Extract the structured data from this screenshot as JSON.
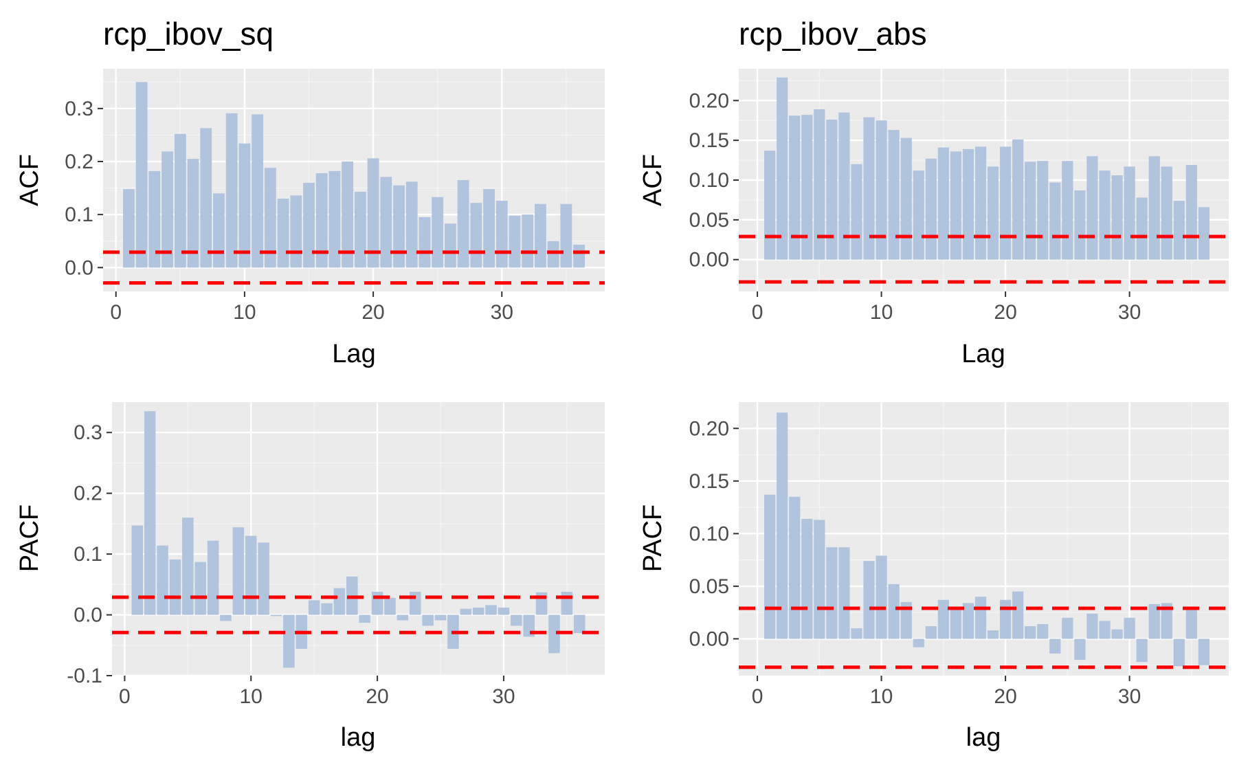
{
  "colors": {
    "panel_background": "#ebebeb",
    "grid_major": "#ffffff",
    "grid_minor": "#f5f5f5",
    "bar_fill": "#b0c4de",
    "conf_line": "#ff0000",
    "tick_text": "#4d4d4d"
  },
  "chart_data": [
    {
      "type": "bar",
      "title": "rcp_ibov_sq",
      "xlabel": "Lag",
      "ylabel": "ACF",
      "x": [
        1,
        2,
        3,
        4,
        5,
        6,
        7,
        8,
        9,
        10,
        11,
        12,
        13,
        14,
        15,
        16,
        17,
        18,
        19,
        20,
        21,
        22,
        23,
        24,
        25,
        26,
        27,
        28,
        29,
        30,
        31,
        32,
        33,
        34,
        35,
        36
      ],
      "values": [
        0.148,
        0.35,
        0.182,
        0.219,
        0.252,
        0.205,
        0.263,
        0.14,
        0.291,
        0.234,
        0.289,
        0.188,
        0.13,
        0.136,
        0.16,
        0.178,
        0.182,
        0.2,
        0.143,
        0.206,
        0.171,
        0.155,
        0.162,
        0.095,
        0.133,
        0.083,
        0.165,
        0.122,
        0.148,
        0.126,
        0.098,
        0.1,
        0.12,
        0.05,
        0.12,
        0.043
      ],
      "conf": [
        0.029,
        -0.029
      ],
      "xlim": [
        -1,
        38
      ],
      "ylim": [
        -0.045,
        0.375
      ],
      "xticks": [
        0,
        10,
        20,
        30
      ],
      "xtick_labels": [
        "0",
        "10",
        "20",
        "30"
      ],
      "yticks": [
        0,
        0.1,
        0.2,
        0.3
      ],
      "ytick_labels": [
        "0.0",
        "0.1",
        "0.2",
        "0.3"
      ],
      "grid": true
    },
    {
      "type": "bar",
      "title": "rcp_ibov_abs",
      "xlabel": "Lag",
      "ylabel": "ACF",
      "x": [
        1,
        2,
        3,
        4,
        5,
        6,
        7,
        8,
        9,
        10,
        11,
        12,
        13,
        14,
        15,
        16,
        17,
        18,
        19,
        20,
        21,
        22,
        23,
        24,
        25,
        26,
        27,
        28,
        29,
        30,
        31,
        32,
        33,
        34,
        35,
        36
      ],
      "values": [
        0.137,
        0.229,
        0.181,
        0.182,
        0.189,
        0.176,
        0.185,
        0.12,
        0.179,
        0.175,
        0.163,
        0.153,
        0.112,
        0.127,
        0.141,
        0.136,
        0.139,
        0.142,
        0.117,
        0.142,
        0.151,
        0.123,
        0.124,
        0.097,
        0.124,
        0.087,
        0.13,
        0.112,
        0.106,
        0.117,
        0.078,
        0.13,
        0.117,
        0.074,
        0.119,
        0.066
      ],
      "conf": [
        0.029,
        -0.028
      ],
      "xlim": [
        -1.5,
        38
      ],
      "ylim": [
        -0.04,
        0.24
      ],
      "xticks": [
        0,
        10,
        20,
        30
      ],
      "xtick_labels": [
        "0",
        "10",
        "20",
        "30"
      ],
      "yticks": [
        0,
        0.05,
        0.1,
        0.15,
        0.2
      ],
      "ytick_labels": [
        "0.00",
        "0.05",
        "0.10",
        "0.15",
        "0.20"
      ],
      "grid": true
    },
    {
      "type": "bar",
      "title": "",
      "xlabel": "lag",
      "ylabel": "PACF",
      "x": [
        1,
        2,
        3,
        4,
        5,
        6,
        7,
        8,
        9,
        10,
        11,
        12,
        13,
        14,
        15,
        16,
        17,
        18,
        19,
        20,
        21,
        22,
        23,
        24,
        25,
        26,
        27,
        28,
        29,
        30,
        31,
        32,
        33,
        34,
        35,
        36
      ],
      "values": [
        0.147,
        0.335,
        0.114,
        0.091,
        0.16,
        0.087,
        0.122,
        -0.01,
        0.144,
        0.13,
        0.119,
        -0.002,
        -0.087,
        -0.056,
        0.024,
        0.019,
        0.044,
        0.063,
        -0.013,
        0.038,
        0.028,
        -0.009,
        0.038,
        -0.018,
        -0.009,
        -0.056,
        0.01,
        0.012,
        0.016,
        0.012,
        -0.018,
        -0.036,
        0.037,
        -0.063,
        0.038,
        -0.03
      ],
      "conf": [
        0.029,
        -0.029
      ],
      "xlim": [
        -1,
        38
      ],
      "ylim": [
        -0.1,
        0.35
      ],
      "xticks": [
        0,
        10,
        20,
        30
      ],
      "xtick_labels": [
        "0",
        "10",
        "20",
        "30"
      ],
      "yticks": [
        -0.1,
        0,
        0.1,
        0.2,
        0.3
      ],
      "ytick_labels": [
        "-0.1",
        "0.0",
        "0.1",
        "0.2",
        "0.3"
      ],
      "grid": true
    },
    {
      "type": "bar",
      "title": "",
      "xlabel": "lag",
      "ylabel": "PACF",
      "x": [
        1,
        2,
        3,
        4,
        5,
        6,
        7,
        8,
        9,
        10,
        11,
        12,
        13,
        14,
        15,
        16,
        17,
        18,
        19,
        20,
        21,
        22,
        23,
        24,
        25,
        26,
        27,
        28,
        29,
        30,
        31,
        32,
        33,
        34,
        35,
        36
      ],
      "values": [
        0.137,
        0.215,
        0.135,
        0.114,
        0.113,
        0.087,
        0.087,
        0.01,
        0.074,
        0.079,
        0.052,
        0.035,
        -0.008,
        0.012,
        0.037,
        0.029,
        0.034,
        0.04,
        0.008,
        0.037,
        0.045,
        0.012,
        0.014,
        -0.014,
        0.02,
        -0.02,
        0.024,
        0.017,
        0.009,
        0.02,
        -0.022,
        0.033,
        0.034,
        -0.026,
        0.029,
        -0.025
      ],
      "conf": [
        0.029,
        -0.027
      ],
      "xlim": [
        -1.5,
        38
      ],
      "ylim": [
        -0.035,
        0.225
      ],
      "xticks": [
        0,
        10,
        20,
        30
      ],
      "xtick_labels": [
        "0",
        "10",
        "20",
        "30"
      ],
      "yticks": [
        0,
        0.05,
        0.1,
        0.15,
        0.2
      ],
      "ytick_labels": [
        "0.00",
        "0.05",
        "0.10",
        "0.15",
        "0.20"
      ],
      "grid": true
    }
  ]
}
